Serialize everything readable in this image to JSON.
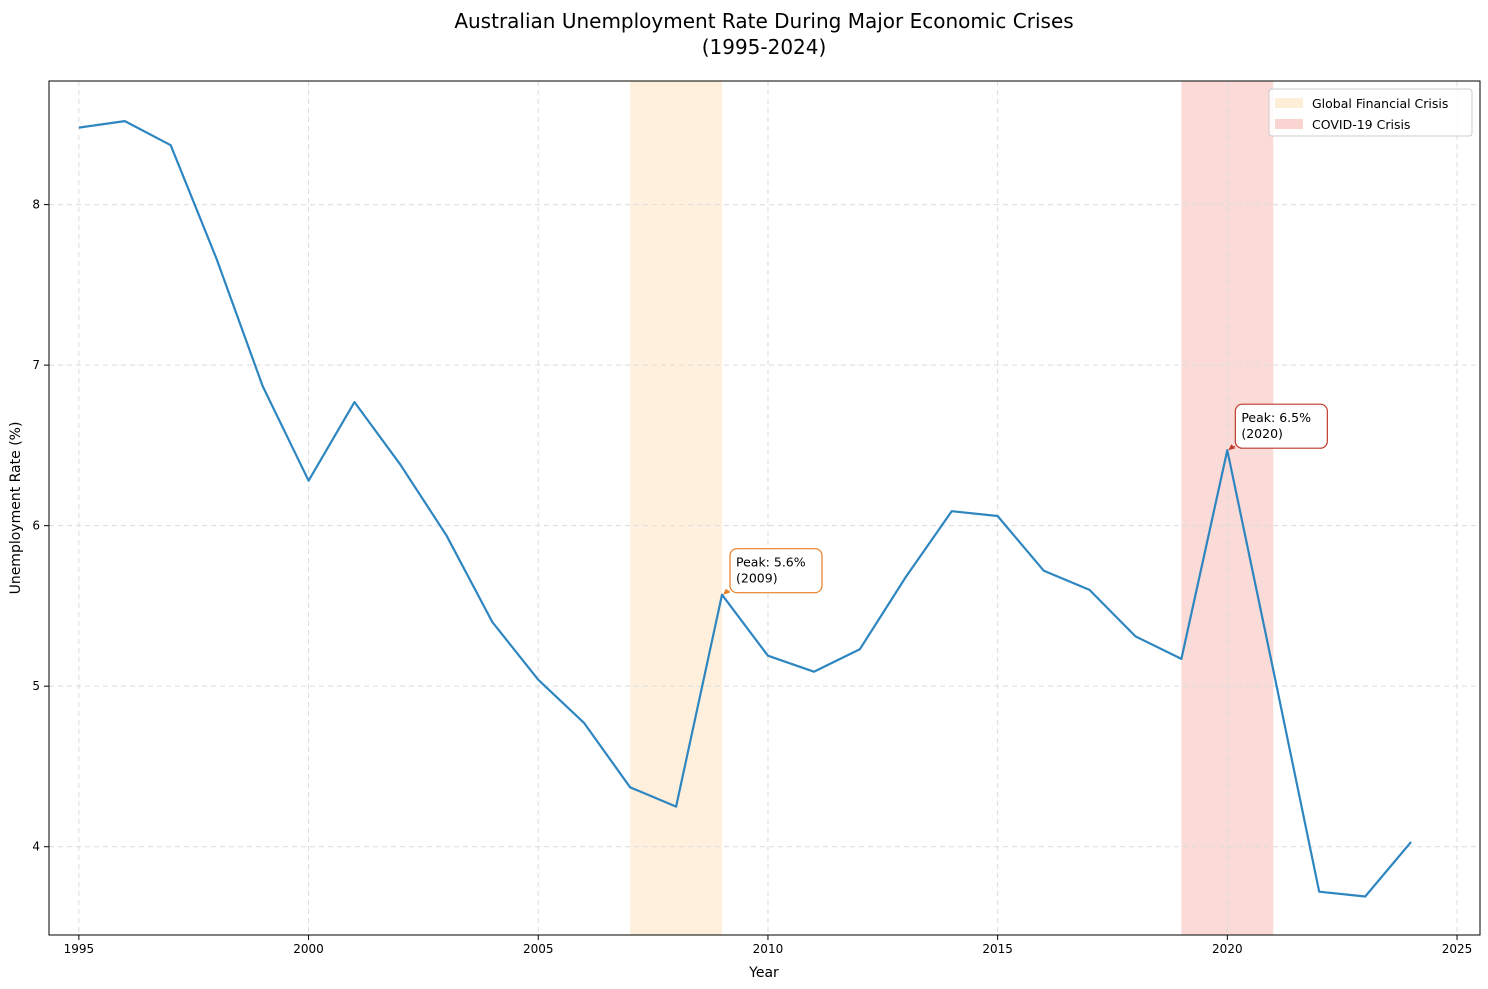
{
  "chart_data": {
    "type": "line",
    "title": [
      "Australian Unemployment Rate During Major Economic Crises",
      "(1995-2024)"
    ],
    "xlabel": "Year",
    "ylabel": "Unemployment Rate (%)",
    "xlim": [
      1994.35,
      2025.5
    ],
    "ylim": [
      3.45,
      8.77
    ],
    "xticks": [
      1995,
      2000,
      2005,
      2010,
      2015,
      2020,
      2025
    ],
    "yticks": [
      4,
      5,
      6,
      7,
      8
    ],
    "grid": true,
    "series": [
      {
        "color": "#2e86c1",
        "x": [
          1995,
          1996,
          1997,
          1998,
          1999,
          2000,
          2001,
          2002,
          2003,
          2004,
          2005,
          2006,
          2007,
          2008,
          2009,
          2010,
          2011,
          2012,
          2013,
          2014,
          2015,
          2016,
          2017,
          2018,
          2019,
          2020,
          2021,
          2022,
          2023,
          2024
        ],
        "y": [
          8.48,
          8.52,
          8.37,
          7.66,
          6.87,
          6.28,
          6.77,
          6.38,
          5.94,
          5.4,
          5.04,
          4.77,
          4.37,
          4.25,
          5.57,
          5.19,
          5.09,
          5.23,
          5.68,
          6.09,
          6.06,
          5.72,
          5.6,
          5.31,
          5.17,
          6.47,
          5.1,
          3.72,
          3.69,
          4.03
        ]
      }
    ],
    "spans": [
      {
        "label": "Global Financial Crisis",
        "x0": 2007,
        "x1": 2009,
        "color": "#fdebd0",
        "opacity": 0.75
      },
      {
        "label": "COVID-19 Crisis",
        "x0": 2019,
        "x1": 2021,
        "color": "#f5b7b1",
        "opacity": 0.5
      }
    ],
    "annotations": [
      {
        "lines": [
          "Peak: 5.6%",
          "(2009)"
        ],
        "x": 2009,
        "y": 5.57,
        "color": "#e67e22"
      },
      {
        "lines": [
          "Peak: 6.5%",
          "(2020)"
        ],
        "x": 2020,
        "y": 6.47,
        "color": "#c0392b"
      }
    ],
    "legend": {
      "position": "top-right"
    }
  }
}
